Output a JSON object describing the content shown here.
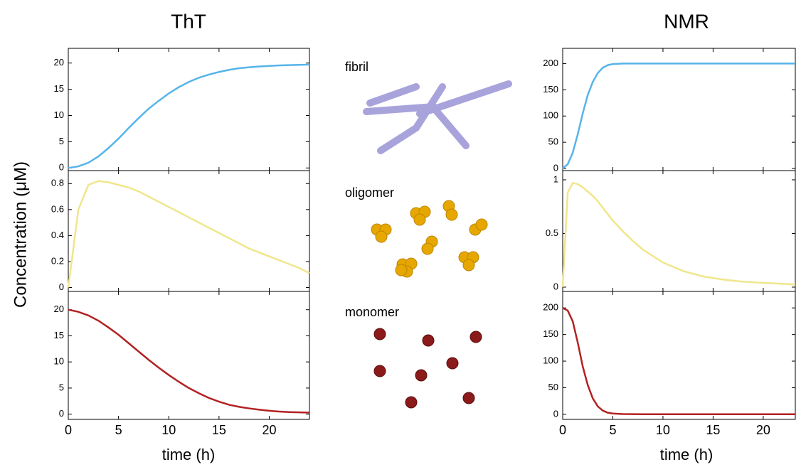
{
  "figure": {
    "y_label": "Concentration (μM)",
    "columns": [
      {
        "title": "ThT",
        "x_label": "time (h)"
      },
      {
        "title": "NMR",
        "x_label": "time (h)"
      }
    ],
    "species": [
      "fibril",
      "oligomer",
      "monomer"
    ]
  },
  "chart_data": [
    {
      "type": "line",
      "color": "#56b4e9",
      "show_xtick_labels": false,
      "x": [
        0,
        1,
        2,
        3,
        4,
        5,
        6,
        7,
        8,
        9,
        10,
        11,
        12,
        13,
        14,
        15,
        16,
        17,
        18,
        19,
        20,
        21,
        22,
        23,
        24
      ],
      "values": [
        0,
        0.3,
        1.0,
        2.2,
        3.8,
        5.6,
        7.6,
        9.5,
        11.3,
        12.8,
        14.2,
        15.4,
        16.4,
        17.2,
        17.8,
        18.3,
        18.7,
        19.0,
        19.2,
        19.35,
        19.45,
        19.55,
        19.6,
        19.65,
        19.7
      ],
      "xlim": [
        0,
        24
      ],
      "xticks": [
        0,
        5,
        10,
        15,
        20
      ],
      "ylim": [
        -0.5,
        22.8
      ],
      "yticks": [
        0,
        5,
        10,
        15,
        20
      ]
    },
    {
      "type": "line",
      "color": "#f0e68c",
      "show_xtick_labels": false,
      "x": [
        0,
        1,
        2,
        3,
        4,
        5,
        6,
        7,
        8,
        9,
        10,
        11,
        12,
        13,
        14,
        15,
        16,
        17,
        18,
        19,
        20,
        21,
        22,
        23,
        24
      ],
      "values": [
        0,
        0.6,
        0.79,
        0.82,
        0.81,
        0.79,
        0.77,
        0.74,
        0.7,
        0.66,
        0.62,
        0.58,
        0.54,
        0.5,
        0.46,
        0.42,
        0.38,
        0.34,
        0.3,
        0.27,
        0.24,
        0.21,
        0.18,
        0.15,
        0.11
      ],
      "xlim": [
        0,
        24
      ],
      "xticks": [
        0,
        5,
        10,
        15,
        20
      ],
      "ylim": [
        -0.03,
        0.9
      ],
      "yticks": [
        0,
        0.2,
        0.4,
        0.6,
        0.8
      ]
    },
    {
      "type": "line",
      "color": "#b22222",
      "show_xtick_labels": true,
      "x": [
        0,
        1,
        2,
        3,
        4,
        5,
        6,
        7,
        8,
        9,
        10,
        11,
        12,
        13,
        14,
        15,
        16,
        17,
        18,
        19,
        20,
        21,
        22,
        23,
        24
      ],
      "values": [
        20,
        19.6,
        18.9,
        17.9,
        16.6,
        15.2,
        13.6,
        12.0,
        10.4,
        8.9,
        7.5,
        6.2,
        5.0,
        4.0,
        3.1,
        2.4,
        1.8,
        1.4,
        1.1,
        0.85,
        0.65,
        0.5,
        0.4,
        0.35,
        0.3
      ],
      "xlim": [
        0,
        24
      ],
      "xticks": [
        0,
        5,
        10,
        15,
        20
      ],
      "ylim": [
        -1,
        23.5
      ],
      "yticks": [
        0,
        5,
        10,
        15,
        20
      ]
    },
    {
      "type": "line",
      "color": "#56b4e9",
      "show_xtick_labels": false,
      "x": [
        0,
        0.5,
        1,
        1.5,
        2,
        2.5,
        3,
        3.5,
        4,
        4.5,
        5,
        6,
        7,
        8,
        10,
        12,
        14,
        16,
        18,
        20,
        22,
        23.2
      ],
      "values": [
        0,
        8,
        30,
        65,
        105,
        140,
        165,
        182,
        192,
        197,
        199,
        200,
        200,
        200,
        200,
        200,
        200,
        200,
        200,
        200,
        200,
        200
      ],
      "xlim": [
        0,
        23.2
      ],
      "xticks": [
        0,
        5,
        10,
        15,
        20
      ],
      "ylim": [
        -4,
        229
      ],
      "yticks": [
        0,
        50,
        100,
        150,
        200
      ]
    },
    {
      "type": "line",
      "color": "#f0e68c",
      "show_xtick_labels": false,
      "x": [
        0,
        0.5,
        1,
        1.5,
        2,
        2.5,
        3,
        3.5,
        4,
        4.5,
        5,
        6,
        7,
        8,
        10,
        12,
        14,
        16,
        18,
        20,
        22,
        23.2
      ],
      "values": [
        0,
        0.88,
        0.97,
        0.96,
        0.93,
        0.89,
        0.85,
        0.8,
        0.74,
        0.68,
        0.62,
        0.52,
        0.43,
        0.35,
        0.23,
        0.15,
        0.1,
        0.07,
        0.05,
        0.04,
        0.03,
        0.025
      ],
      "xlim": [
        0,
        23.2
      ],
      "xticks": [
        0,
        5,
        10,
        15,
        20
      ],
      "ylim": [
        -0.04,
        1.086
      ],
      "yticks": [
        0,
        0.5,
        1
      ]
    },
    {
      "type": "line",
      "color": "#b22222",
      "show_xtick_labels": true,
      "x": [
        0,
        0.5,
        1,
        1.5,
        2,
        2.5,
        3,
        3.5,
        4,
        4.5,
        5,
        6,
        7,
        8,
        10,
        12,
        14,
        16,
        18,
        20,
        22,
        23.2
      ],
      "values": [
        200,
        195,
        175,
        135,
        90,
        55,
        30,
        15,
        7,
        3,
        1.5,
        0.5,
        0.3,
        0.2,
        0.1,
        0.1,
        0.1,
        0.1,
        0.1,
        0.1,
        0.1,
        0.1
      ],
      "xlim": [
        0,
        23.2
      ],
      "xticks": [
        0,
        5,
        10,
        15,
        20
      ],
      "ylim": [
        -9.5,
        231
      ],
      "yticks": [
        0,
        50,
        100,
        150,
        200
      ]
    }
  ]
}
